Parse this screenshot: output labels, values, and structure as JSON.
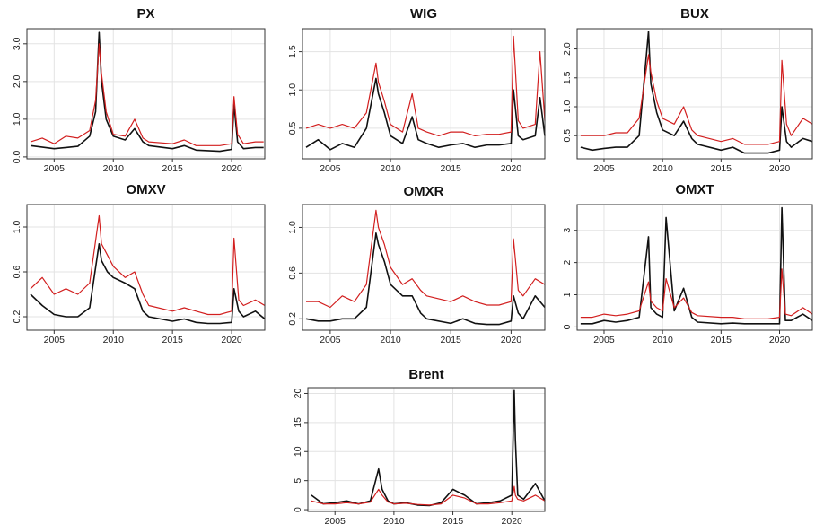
{
  "colors": {
    "series_black": "#111111",
    "series_red": "#d21f1f",
    "grid": "#e3e3e3"
  },
  "chart_data": [
    {
      "type": "line",
      "title": "PX",
      "xlabel": "",
      "ylabel": "",
      "x_ticks": [
        "2005",
        "2010",
        "2015",
        "2020"
      ],
      "y_ticks": [
        "0.0",
        "1.0",
        "2.0",
        "3.0"
      ],
      "xlim": [
        2002.7,
        2022.8
      ],
      "ylim": [
        -0.05,
        3.4
      ],
      "grid": true,
      "series": [
        {
          "color": "black",
          "x": [
            2003,
            2005,
            2006,
            2007,
            2008,
            2008.5,
            2008.8,
            2009,
            2009.4,
            2010,
            2011,
            2011.8,
            2012.5,
            2013,
            2015,
            2016,
            2017,
            2019,
            2020,
            2020.2,
            2020.5,
            2021,
            2022,
            2022.7
          ],
          "y": [
            0.3,
            0.22,
            0.25,
            0.28,
            0.55,
            1.2,
            3.3,
            2.0,
            1.0,
            0.55,
            0.45,
            0.75,
            0.4,
            0.3,
            0.22,
            0.3,
            0.18,
            0.15,
            0.2,
            1.4,
            0.4,
            0.22,
            0.25,
            0.25
          ]
        },
        {
          "color": "red",
          "x": [
            2003,
            2004,
            2005,
            2006,
            2007,
            2008,
            2008.5,
            2008.8,
            2009,
            2009.4,
            2010,
            2011,
            2011.8,
            2012.5,
            2013,
            2015,
            2016,
            2017,
            2019,
            2020,
            2020.2,
            2020.5,
            2021,
            2022,
            2022.7
          ],
          "y": [
            0.4,
            0.5,
            0.35,
            0.55,
            0.5,
            0.7,
            1.5,
            3.0,
            2.2,
            1.2,
            0.6,
            0.55,
            1.0,
            0.5,
            0.4,
            0.35,
            0.45,
            0.3,
            0.3,
            0.35,
            1.6,
            0.6,
            0.35,
            0.4,
            0.4
          ]
        }
      ]
    },
    {
      "type": "line",
      "title": "WIG",
      "xlabel": "",
      "ylabel": "",
      "x_ticks": [
        "2005",
        "2010",
        "2015",
        "2020"
      ],
      "y_ticks": [
        "0.5",
        "1.0",
        "1.5"
      ],
      "xlim": [
        2002.7,
        2022.8
      ],
      "ylim": [
        0.1,
        1.8
      ],
      "grid": true,
      "series": [
        {
          "color": "black",
          "x": [
            2003,
            2004,
            2005,
            2006,
            2007,
            2008,
            2008.8,
            2009,
            2009.5,
            2010,
            2011,
            2011.8,
            2012.3,
            2013,
            2014,
            2015,
            2016,
            2017,
            2018,
            2019,
            2020,
            2020.2,
            2020.6,
            2021,
            2022,
            2022.4,
            2022.8
          ],
          "y": [
            0.25,
            0.35,
            0.22,
            0.3,
            0.25,
            0.5,
            1.15,
            0.95,
            0.7,
            0.4,
            0.3,
            0.65,
            0.35,
            0.3,
            0.25,
            0.28,
            0.3,
            0.25,
            0.28,
            0.28,
            0.3,
            1.0,
            0.4,
            0.35,
            0.4,
            0.9,
            0.4
          ]
        },
        {
          "color": "red",
          "x": [
            2003,
            2004,
            2005,
            2006,
            2007,
            2008,
            2008.8,
            2009,
            2009.5,
            2010,
            2011,
            2011.8,
            2012.3,
            2013,
            2014,
            2015,
            2016,
            2017,
            2018,
            2019,
            2020,
            2020.2,
            2020.6,
            2021,
            2022,
            2022.4,
            2022.8
          ],
          "y": [
            0.5,
            0.55,
            0.5,
            0.55,
            0.5,
            0.7,
            1.35,
            1.1,
            0.85,
            0.55,
            0.45,
            0.95,
            0.5,
            0.45,
            0.4,
            0.45,
            0.45,
            0.4,
            0.42,
            0.42,
            0.45,
            1.7,
            0.6,
            0.5,
            0.55,
            1.5,
            0.6
          ]
        }
      ]
    },
    {
      "type": "line",
      "title": "BUX",
      "xlabel": "",
      "ylabel": "",
      "x_ticks": [
        "2005",
        "2010",
        "2015",
        "2020"
      ],
      "y_ticks": [
        "0.5",
        "1.0",
        "1.5",
        "2.0"
      ],
      "xlim": [
        2002.7,
        2022.8
      ],
      "ylim": [
        0.1,
        2.35
      ],
      "grid": true,
      "series": [
        {
          "color": "black",
          "x": [
            2003,
            2004,
            2005,
            2006,
            2007,
            2008,
            2008.8,
            2009,
            2009.5,
            2010,
            2011,
            2011.8,
            2012.5,
            2013,
            2015,
            2016,
            2017,
            2018,
            2019,
            2020,
            2020.2,
            2020.6,
            2021,
            2022,
            2022.8
          ],
          "y": [
            0.3,
            0.25,
            0.28,
            0.3,
            0.3,
            0.5,
            2.3,
            1.4,
            0.9,
            0.6,
            0.5,
            0.75,
            0.45,
            0.35,
            0.25,
            0.3,
            0.2,
            0.2,
            0.2,
            0.25,
            1.0,
            0.4,
            0.3,
            0.45,
            0.4
          ]
        },
        {
          "color": "red",
          "x": [
            2003,
            2004,
            2005,
            2006,
            2007,
            2008,
            2008.8,
            2009,
            2009.5,
            2010,
            2011,
            2011.8,
            2012.5,
            2013,
            2015,
            2016,
            2017,
            2018,
            2019,
            2020,
            2020.2,
            2020.6,
            2021,
            2022,
            2022.8
          ],
          "y": [
            0.5,
            0.5,
            0.5,
            0.55,
            0.55,
            0.8,
            1.9,
            1.6,
            1.1,
            0.8,
            0.7,
            1.0,
            0.6,
            0.5,
            0.4,
            0.45,
            0.35,
            0.35,
            0.35,
            0.4,
            1.8,
            0.7,
            0.5,
            0.8,
            0.7
          ]
        }
      ]
    },
    {
      "type": "line",
      "title": "OMXV",
      "xlabel": "",
      "ylabel": "",
      "x_ticks": [
        "2005",
        "2010",
        "2015",
        "2020"
      ],
      "y_ticks": [
        "0.2",
        "0.6",
        "1.0"
      ],
      "xlim": [
        2002.7,
        2022.8
      ],
      "ylim": [
        0.08,
        1.2
      ],
      "grid": true,
      "series": [
        {
          "color": "black",
          "x": [
            2003,
            2004,
            2005,
            2006,
            2007,
            2008,
            2008.8,
            2009,
            2009.5,
            2010,
            2011,
            2011.8,
            2012.5,
            2013,
            2015,
            2016,
            2017,
            2018,
            2019,
            2020,
            2020.2,
            2020.6,
            2021,
            2022,
            2022.8
          ],
          "y": [
            0.4,
            0.3,
            0.22,
            0.2,
            0.2,
            0.28,
            0.85,
            0.7,
            0.6,
            0.55,
            0.5,
            0.45,
            0.25,
            0.2,
            0.16,
            0.18,
            0.15,
            0.14,
            0.14,
            0.15,
            0.45,
            0.25,
            0.2,
            0.25,
            0.18
          ]
        },
        {
          "color": "red",
          "x": [
            2003,
            2004,
            2005,
            2006,
            2007,
            2008,
            2008.8,
            2009,
            2009.5,
            2010,
            2011,
            2011.8,
            2012.5,
            2013,
            2015,
            2016,
            2017,
            2018,
            2019,
            2020,
            2020.2,
            2020.6,
            2021,
            2022,
            2022.8
          ],
          "y": [
            0.45,
            0.55,
            0.4,
            0.45,
            0.4,
            0.5,
            1.1,
            0.85,
            0.75,
            0.65,
            0.55,
            0.6,
            0.4,
            0.3,
            0.25,
            0.28,
            0.25,
            0.22,
            0.22,
            0.25,
            0.9,
            0.35,
            0.3,
            0.35,
            0.3
          ]
        }
      ]
    },
    {
      "type": "line",
      "title": "OMXR",
      "xlabel": "",
      "ylabel": "",
      "x_ticks": [
        "2005",
        "2010",
        "2015",
        "2020"
      ],
      "y_ticks": [
        "0.2",
        "0.6",
        "1.0"
      ],
      "xlim": [
        2002.7,
        2022.8
      ],
      "ylim": [
        0.1,
        1.2
      ],
      "grid": true,
      "series": [
        {
          "color": "black",
          "x": [
            2003,
            2004,
            2005,
            2006,
            2007,
            2008,
            2008.8,
            2009,
            2009.5,
            2010,
            2011,
            2011.8,
            2012.5,
            2013,
            2015,
            2016,
            2017,
            2018,
            2019,
            2020,
            2020.2,
            2020.6,
            2021,
            2022,
            2022.8
          ],
          "y": [
            0.2,
            0.18,
            0.18,
            0.2,
            0.2,
            0.3,
            0.95,
            0.85,
            0.7,
            0.5,
            0.4,
            0.4,
            0.25,
            0.2,
            0.16,
            0.2,
            0.16,
            0.15,
            0.15,
            0.18,
            0.4,
            0.25,
            0.2,
            0.4,
            0.3
          ]
        },
        {
          "color": "red",
          "x": [
            2003,
            2004,
            2005,
            2006,
            2007,
            2008,
            2008.8,
            2009,
            2009.5,
            2010,
            2011,
            2011.8,
            2012.5,
            2013,
            2015,
            2016,
            2017,
            2018,
            2019,
            2020,
            2020.2,
            2020.6,
            2021,
            2022,
            2022.8
          ],
          "y": [
            0.35,
            0.35,
            0.3,
            0.4,
            0.35,
            0.5,
            1.15,
            1.0,
            0.85,
            0.65,
            0.5,
            0.55,
            0.45,
            0.4,
            0.35,
            0.4,
            0.35,
            0.32,
            0.32,
            0.35,
            0.9,
            0.45,
            0.4,
            0.55,
            0.5
          ]
        }
      ]
    },
    {
      "type": "line",
      "title": "OMXT",
      "xlabel": "",
      "ylabel": "",
      "x_ticks": [
        "2005",
        "2010",
        "2015",
        "2020"
      ],
      "y_ticks": [
        "0",
        "1",
        "2",
        "3"
      ],
      "xlim": [
        2002.7,
        2022.8
      ],
      "ylim": [
        -0.1,
        3.8
      ],
      "grid": true,
      "series": [
        {
          "color": "black",
          "x": [
            2003,
            2004,
            2005,
            2006,
            2007,
            2008,
            2008.8,
            2009,
            2009.5,
            2010,
            2010.3,
            2011,
            2011.8,
            2012.5,
            2013,
            2015,
            2016,
            2017,
            2018,
            2019,
            2020,
            2020.2,
            2020.5,
            2021,
            2022,
            2022.8
          ],
          "y": [
            0.1,
            0.1,
            0.2,
            0.15,
            0.2,
            0.3,
            2.8,
            0.6,
            0.4,
            0.3,
            3.4,
            0.5,
            1.2,
            0.3,
            0.15,
            0.1,
            0.12,
            0.1,
            0.1,
            0.1,
            0.1,
            3.7,
            0.2,
            0.2,
            0.4,
            0.2
          ]
        },
        {
          "color": "red",
          "x": [
            2003,
            2004,
            2005,
            2006,
            2007,
            2008,
            2008.8,
            2009,
            2009.5,
            2010,
            2010.3,
            2011,
            2011.8,
            2012.5,
            2013,
            2015,
            2016,
            2017,
            2018,
            2019,
            2020,
            2020.2,
            2020.5,
            2021,
            2022,
            2022.8
          ],
          "y": [
            0.3,
            0.3,
            0.4,
            0.35,
            0.4,
            0.5,
            1.4,
            0.8,
            0.6,
            0.5,
            1.5,
            0.6,
            0.9,
            0.45,
            0.35,
            0.3,
            0.3,
            0.25,
            0.25,
            0.25,
            0.3,
            1.8,
            0.4,
            0.35,
            0.6,
            0.4
          ]
        }
      ]
    },
    {
      "type": "line",
      "title": "Brent",
      "xlabel": "",
      "ylabel": "",
      "x_ticks": [
        "2005",
        "2010",
        "2015",
        "2020"
      ],
      "y_ticks": [
        "0",
        "5",
        "10",
        "15",
        "20"
      ],
      "xlim": [
        2002.7,
        2022.8
      ],
      "ylim": [
        -0.3,
        21
      ],
      "grid": true,
      "series": [
        {
          "color": "black",
          "x": [
            2003,
            2004,
            2005,
            2006,
            2007,
            2008,
            2008.7,
            2009,
            2009.5,
            2010,
            2011,
            2012,
            2013,
            2014,
            2015,
            2016,
            2017,
            2018,
            2019,
            2020,
            2020.2,
            2020.3,
            2020.5,
            2021,
            2022,
            2022.8
          ],
          "y": [
            2.5,
            1.0,
            1.2,
            1.5,
            1.0,
            1.5,
            7.0,
            3.5,
            1.5,
            1.0,
            1.2,
            0.8,
            0.7,
            1.2,
            3.5,
            2.5,
            1.0,
            1.2,
            1.5,
            2.5,
            20.5,
            12.0,
            2.5,
            1.8,
            4.5,
            1.5
          ]
        },
        {
          "color": "red",
          "x": [
            2003,
            2004,
            2005,
            2006,
            2007,
            2008,
            2008.7,
            2009,
            2009.5,
            2010,
            2011,
            2012,
            2013,
            2014,
            2015,
            2016,
            2017,
            2018,
            2019,
            2020,
            2020.2,
            2020.3,
            2020.5,
            2021,
            2022,
            2022.8
          ],
          "y": [
            1.5,
            1.0,
            1.0,
            1.2,
            1.0,
            1.3,
            3.5,
            2.5,
            1.3,
            1.0,
            1.1,
            0.9,
            0.8,
            1.0,
            2.5,
            2.0,
            1.0,
            1.0,
            1.2,
            1.5,
            4.0,
            2.5,
            1.8,
            1.5,
            2.5,
            1.5
          ]
        }
      ]
    }
  ]
}
